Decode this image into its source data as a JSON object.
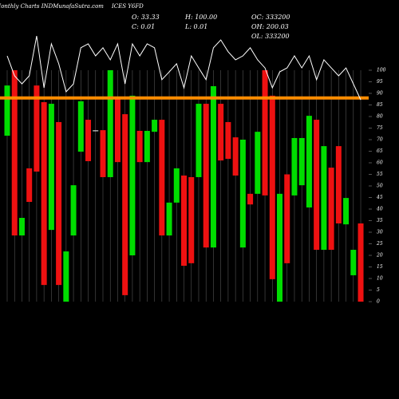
{
  "chart_data": {
    "type": "candlestick",
    "title": "Monthly Charts INDMunafaSutra.com",
    "subtitle": "ICES Y6FD",
    "info": [
      "O: 33.33",
      "H: 100.00",
      "OC: 333200",
      "C: 0.01",
      "L: 0.01",
      "OH: 200.03",
      "OL: 333200"
    ],
    "open": [
      71.7,
      100,
      28.6,
      57.6,
      93.4,
      86.2,
      31,
      77.6,
      0,
      28.6,
      64.8,
      78.6,
      74,
      74.1,
      53.8,
      87.6,
      81,
      20,
      73.8,
      60.3,
      73.4,
      78.6,
      28.6,
      42.8,
      54.5,
      53.8,
      53.8,
      85.5,
      23.4,
      85.5,
      77.6,
      71,
      23.4,
      46.6,
      46.6,
      100,
      89,
      0,
      55,
      45.9,
      50.3,
      40.7,
      78.6,
      22.4,
      57.9,
      67.2,
      33.4,
      11.4,
      33.8
    ],
    "close": [
      93.4,
      28.6,
      36.2,
      43.1,
      56.2,
      7.2,
      85.5,
      7.2,
      21.7,
      50.3,
      86.6,
      60.7,
      74,
      53.8,
      100,
      60.3,
      2.8,
      89,
      60.3,
      73.8,
      78.6,
      28.6,
      42.8,
      57.6,
      15.5,
      16.6,
      85.5,
      23.4,
      93.1,
      61,
      61.7,
      54.5,
      70,
      42,
      73.4,
      45.9,
      9.7,
      46.6,
      16.6,
      70.7,
      70.7,
      80.3,
      22.4,
      67.2,
      22.4,
      33.8,
      44.8,
      22.4,
      0
    ],
    "up_color": "#00dd00",
    "down_color": "#ee1111",
    "flat_color": "#ffffff",
    "line": {
      "color": "#ffffff",
      "values": [
        106.2,
        97.6,
        94.1,
        97.6,
        114.8,
        92.4,
        111.4,
        102.8,
        90.7,
        94.1,
        109.7,
        111.4,
        106.2,
        109.7,
        104.5,
        111.4,
        94.1,
        111.4,
        106.2,
        111.4,
        109.7,
        95.9,
        99.3,
        102.8,
        92.4,
        106.2,
        101,
        95.9,
        109.7,
        113.1,
        108,
        104.5,
        106.2,
        109.7,
        104.5,
        101,
        92.4,
        99.3,
        101,
        106.2,
        101,
        106.2,
        95.9,
        104.5,
        101,
        97.6,
        101,
        94.1,
        87.2
      ]
    },
    "hline": {
      "value": 88,
      "color": "#ff8c00"
    },
    "ylim": [
      0,
      120
    ],
    "yticks": [
      0,
      5,
      10,
      15,
      20,
      25,
      30,
      35,
      40,
      45,
      50,
      55,
      60,
      65,
      70,
      75,
      80,
      85,
      90,
      95,
      100
    ]
  }
}
